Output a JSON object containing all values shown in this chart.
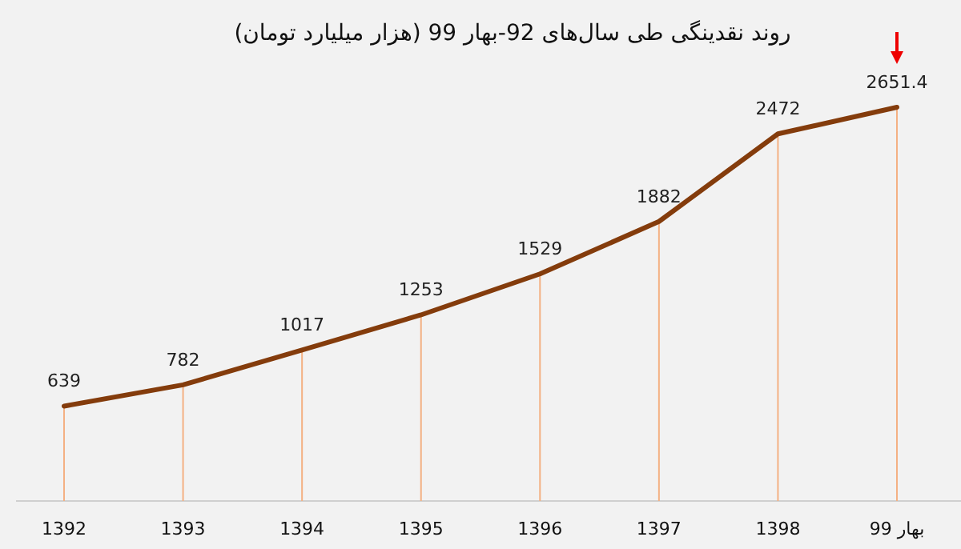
{
  "chart_data": {
    "type": "line",
    "title": "روند نقدینگی طی سال‌های 92-بهار 99 (هزار میلیارد تومان)",
    "categories": [
      "1392",
      "1393",
      "1394",
      "1395",
      "1396",
      "1397",
      "1398",
      "بهار 99"
    ],
    "series": [
      {
        "color": "#843c0c",
        "values": [
          639,
          782,
          1017,
          1253,
          1529,
          1882,
          2472,
          2651.4
        ]
      }
    ],
    "data_labels": true,
    "grid": "x",
    "marker": "none",
    "line_style": "solid"
  }
}
